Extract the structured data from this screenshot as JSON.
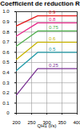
{
  "chart_data": {
    "type": "line",
    "title": "Coefficient de réduction R",
    "x_label": "QH1 (l/s)",
    "x": [
      200,
      270,
      400
    ],
    "series": [
      {
        "name": "0.9",
        "color": "#e41a1c",
        "values": [
          0.86,
          0.96,
          0.96
        ]
      },
      {
        "name": "0.8",
        "color": "#e7298a",
        "values": [
          0.76,
          0.89,
          0.89
        ]
      },
      {
        "name": "0.75",
        "color": "#4daf4a",
        "values": [
          0.66,
          0.81,
          0.81
        ]
      },
      {
        "name": "0.6",
        "color": "#c8b400",
        "values": [
          0.53,
          0.7,
          0.7
        ]
      },
      {
        "name": "0.5",
        "color": "#1f9aa8",
        "values": [
          0.42,
          0.6,
          0.6
        ]
      },
      {
        "name": "0.25",
        "color": "#7b3294",
        "values": [
          0.18,
          0.44,
          0.44
        ]
      }
    ],
    "xlim": [
      200,
      400
    ],
    "xticks": [
      200,
      250,
      300,
      350,
      400
    ],
    "ylim": [
      0,
      1
    ],
    "yticks": [
      0,
      0.1,
      0.2,
      0.3,
      0.4,
      0.5,
      0.6,
      0.7,
      0.8,
      0.9,
      {
        "value": 1,
        "label": "1.0"
      }
    ],
    "grid": true
  }
}
